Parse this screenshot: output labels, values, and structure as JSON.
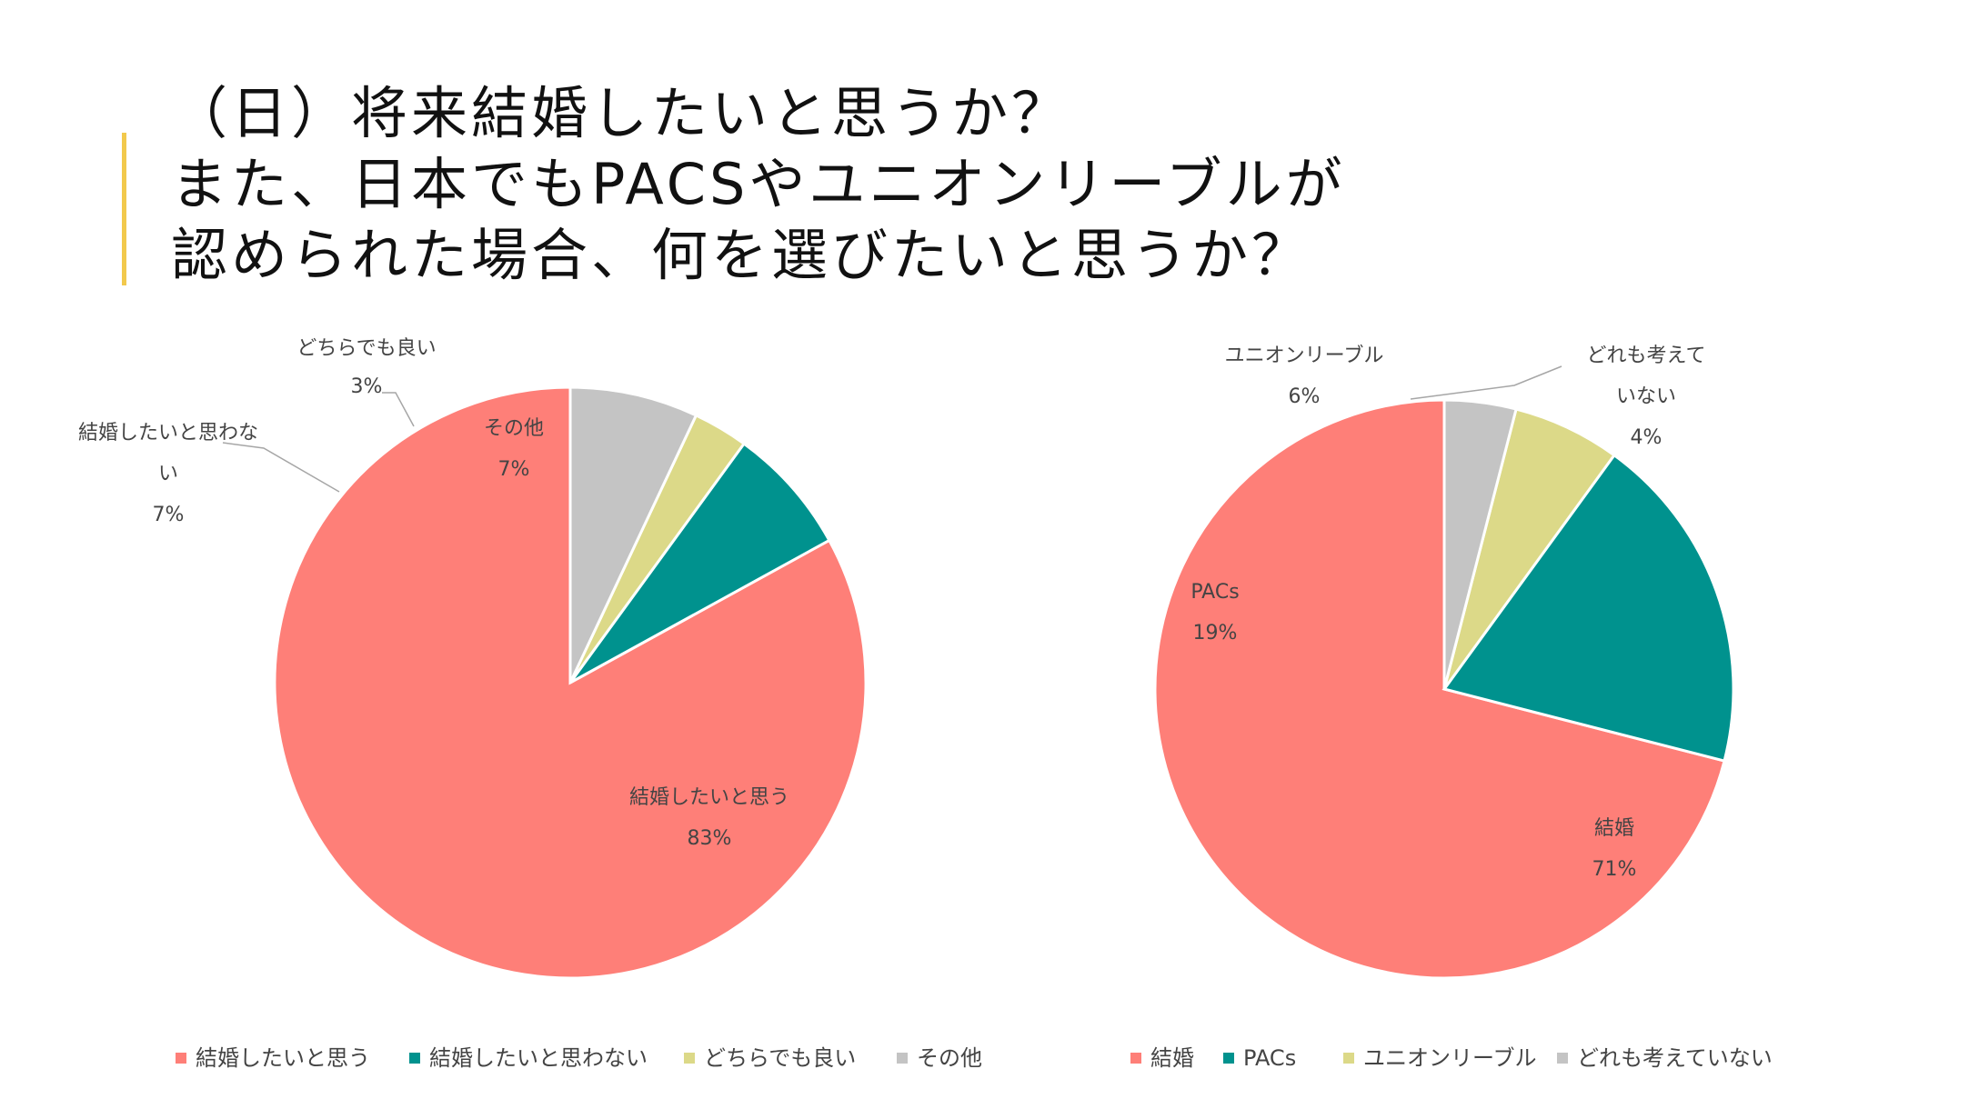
{
  "title": {
    "line1": "（日）将来結婚したいと思うか？",
    "line2": "また、日本でもPACSやユニオンリーブルが",
    "line3": "認められた場合、何を選びたいと思うか？"
  },
  "colors": {
    "accent": "#f2c94c",
    "red": "#fe7f78",
    "teal": "#00928e",
    "yellow": "#dcd988",
    "gray": "#c4c4c4"
  },
  "chart_data": [
    {
      "type": "pie",
      "categories": [
        "結婚したいと思う",
        "結婚したいと思わない",
        "どちらでも良い",
        "その他"
      ],
      "values": [
        83,
        7,
        3,
        7
      ],
      "data_labels": [
        {
          "name_lines": [
            "結婚したいと思う"
          ],
          "value": "83%"
        },
        {
          "name_lines": [
            "結婚したいと思わな",
            "い"
          ],
          "value": "7%"
        },
        {
          "name_lines": [
            "どちらでも良い"
          ],
          "value": "3%"
        },
        {
          "name_lines": [
            "その他"
          ],
          "value": "7%"
        }
      ],
      "legend": [
        "結婚したいと思う",
        "結婚したいと思わない",
        "どちらでも良い",
        "その他"
      ],
      "legend_placement": "bottom",
      "colors": [
        "#fe7f78",
        "#00928e",
        "#dcd988",
        "#c4c4c4"
      ]
    },
    {
      "type": "pie",
      "categories": [
        "結婚",
        "PACs",
        "ユニオンリーブル",
        "どれも考えていない"
      ],
      "values": [
        71,
        19,
        6,
        4
      ],
      "data_labels": [
        {
          "name_lines": [
            "結婚"
          ],
          "value": "71%"
        },
        {
          "name_lines": [
            "PACs"
          ],
          "value": "19%"
        },
        {
          "name_lines": [
            "ユニオンリーブル"
          ],
          "value": "6%"
        },
        {
          "name_lines": [
            "どれも考えて",
            "いない"
          ],
          "value": "4%"
        }
      ],
      "legend": [
        "結婚",
        "PACs",
        "ユニオンリーブル",
        "どれも考えていない"
      ],
      "legend_placement": "bottom",
      "colors": [
        "#fe7f78",
        "#00928e",
        "#dcd988",
        "#c4c4c4"
      ]
    }
  ]
}
